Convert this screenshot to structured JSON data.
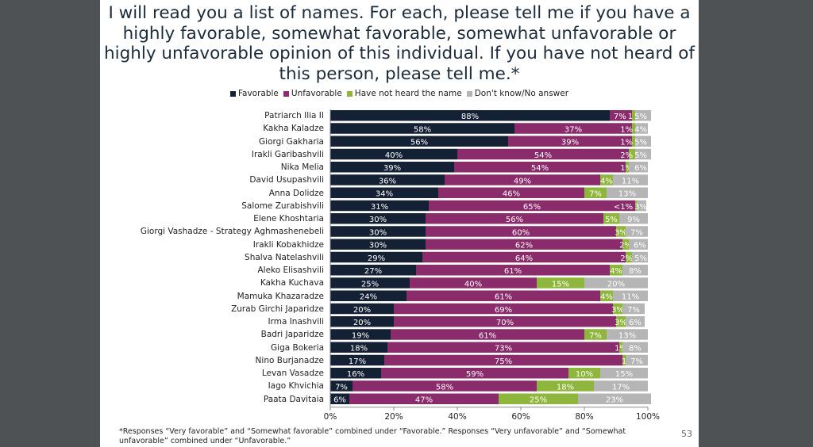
{
  "slide": {
    "title": "I will read you a list of names. For each, please tell me if you have a highly favorable, somewhat favorable, somewhat unfavorable or highly unfavorable opinion of this individual. If you have not heard of this person, please tell me.*",
    "title_lines": [
      "I will read you a list of names. For each, please tell me if you have a",
      "highly favorable, somewhat favorable, somewhat unfavorable or",
      "highly unfavorable opinion of this individual. If you have not heard of",
      "this person, please tell me.*"
    ],
    "footnote": "*Responses “Very favorable” and “Somewhat favorable” combined under “Favorable.” Responses “Very unfavorable” and “Somewhat unfavorable” combined under “Unfavorable.”",
    "page_number": "53"
  },
  "chart_data": {
    "type": "bar",
    "orientation": "horizontal-stacked-100",
    "categories": [
      "Patriarch Ilia II",
      "Kakha Kaladze",
      "Giorgi Gakharia",
      "Irakli Garibashvili",
      "Nika Melia",
      "David Usupashvili",
      "Anna Dolidze",
      "Salome Zurabishvili",
      "Elene Khoshtaria",
      "Giorgi Vashadze - Strategy Aghmashenebeli",
      "Irakli Kobakhidze",
      "Shalva Natelashvili",
      "Aleko Elisashvili",
      "Kakha Kuchava",
      "Mamuka Khazaradze",
      "Zurab Girchi Japaridze",
      "Irma Inashvili",
      "Badri Japaridze",
      "Giga Bokeria",
      "Nino Burjanadze",
      "Levan Vasadze",
      "Iago Khvichia",
      "Paata Davitaia"
    ],
    "series": [
      {
        "name": "Favorable",
        "color": "#142033",
        "values": [
          88,
          58,
          56,
          40,
          39,
          36,
          34,
          31,
          30,
          30,
          30,
          29,
          27,
          25,
          24,
          20,
          20,
          19,
          18,
          17,
          16,
          7,
          6
        ],
        "labels": [
          "88%",
          "58%",
          "56%",
          "40%",
          "39%",
          "36%",
          "34%",
          "31%",
          "30%",
          "30%",
          "30%",
          "29%",
          "27%",
          "25%",
          "24%",
          "20%",
          "20%",
          "19%",
          "18%",
          "17%",
          "16%",
          "7%",
          "6%"
        ]
      },
      {
        "name": "Unfavorable",
        "color": "#8a2b6c",
        "values": [
          7,
          37,
          39,
          54,
          54,
          49,
          46,
          65,
          56,
          60,
          62,
          64,
          61,
          40,
          61,
          69,
          70,
          61,
          73,
          75,
          59,
          58,
          47
        ],
        "labels": [
          "7%",
          "37%",
          "39%",
          "54%",
          "54%",
          "49%",
          "46%",
          "65%",
          "56%",
          "60%",
          "62%",
          "64%",
          "61%",
          "40%",
          "61%",
          "69%",
          "70%",
          "61%",
          "73%",
          "75%",
          "59%",
          "58%",
          "47%"
        ]
      },
      {
        "name": "Have not heard the name",
        "color": "#8fb63c",
        "values": [
          1,
          1,
          1,
          2,
          1,
          4,
          7,
          0.5,
          5,
          3,
          2,
          2,
          4,
          15,
          4,
          3,
          3,
          7,
          1,
          1,
          10,
          18,
          25
        ],
        "labels": [
          "1",
          "1%",
          "1%",
          "2%",
          "1%",
          "4%",
          "7%",
          "<1%",
          "5%",
          "3%",
          "2%",
          "2%",
          "4%",
          "15%",
          "4%",
          "3%",
          "3%",
          "7%",
          "1%",
          "1",
          "10%",
          "18%",
          "25%"
        ]
      },
      {
        "name": "Don't know/No answer",
        "color": "#b5b5b5",
        "values": [
          5,
          4,
          5,
          5,
          6,
          11,
          13,
          3,
          9,
          7,
          6,
          5,
          8,
          20,
          11,
          7,
          6,
          13,
          8,
          7,
          15,
          17,
          23
        ],
        "labels": [
          "5%",
          "4%",
          "5%",
          "5%",
          "6%",
          "11%",
          "13%",
          "3%",
          "9%",
          "7%",
          "6%",
          "5%",
          "8%",
          "20%",
          "11%",
          "7%",
          "6%",
          "13%",
          "8%",
          "7%",
          "15%",
          "17%",
          "23%"
        ]
      }
    ],
    "xlim": [
      0,
      100
    ],
    "xticks": [
      "0%",
      "20%",
      "40%",
      "60%",
      "80%",
      "100%"
    ],
    "legend_placement": "top",
    "grid": false
  }
}
